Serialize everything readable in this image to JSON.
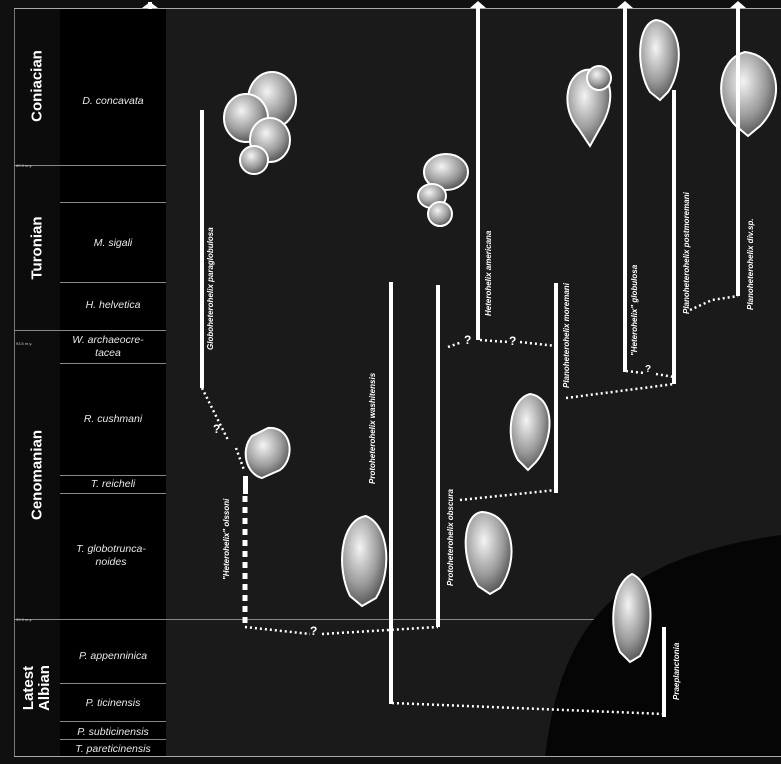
{
  "stages": [
    {
      "label": "Coniacian"
    },
    {
      "label": "Turonian"
    },
    {
      "label": "Cenomanian"
    },
    {
      "label": "Latest Albian"
    }
  ],
  "zones": [
    {
      "label": "D. concavata"
    },
    {
      "label": "M. sigali"
    },
    {
      "label": "H. helvetica"
    },
    {
      "label": "W. archaeocre-tacea"
    },
    {
      "label": "R. cushmani"
    },
    {
      "label": "T. reicheli"
    },
    {
      "label": "T. globotrunca-noides"
    },
    {
      "label": "P. appenninica"
    },
    {
      "label": "P. ticinensis"
    },
    {
      "label": "P. subticinensis"
    },
    {
      "label": "T. pareticinensis"
    }
  ],
  "ages": [
    {
      "label": "89.3 m.y."
    },
    {
      "label": "93.5 m.y."
    },
    {
      "label": "99.3 m.y."
    }
  ],
  "taxa": [
    {
      "label": "Globoheterohelix paraglobulosa"
    },
    {
      "label": "\"Heterohelix\" olssoni"
    },
    {
      "label": "Protoheterohelix washitensis"
    },
    {
      "label": "Protoheterohelix obscura"
    },
    {
      "label": "Heterohelix americana"
    },
    {
      "label": "Planoheterohelix moremani"
    },
    {
      "label": "\"Heterohelix\" globulosa"
    },
    {
      "label": "Planoheterohelix postmoremani"
    },
    {
      "label": "Planoheterohelix div.sp."
    },
    {
      "label": "Praeplanctonia"
    }
  ],
  "uncertain_mark": "?"
}
